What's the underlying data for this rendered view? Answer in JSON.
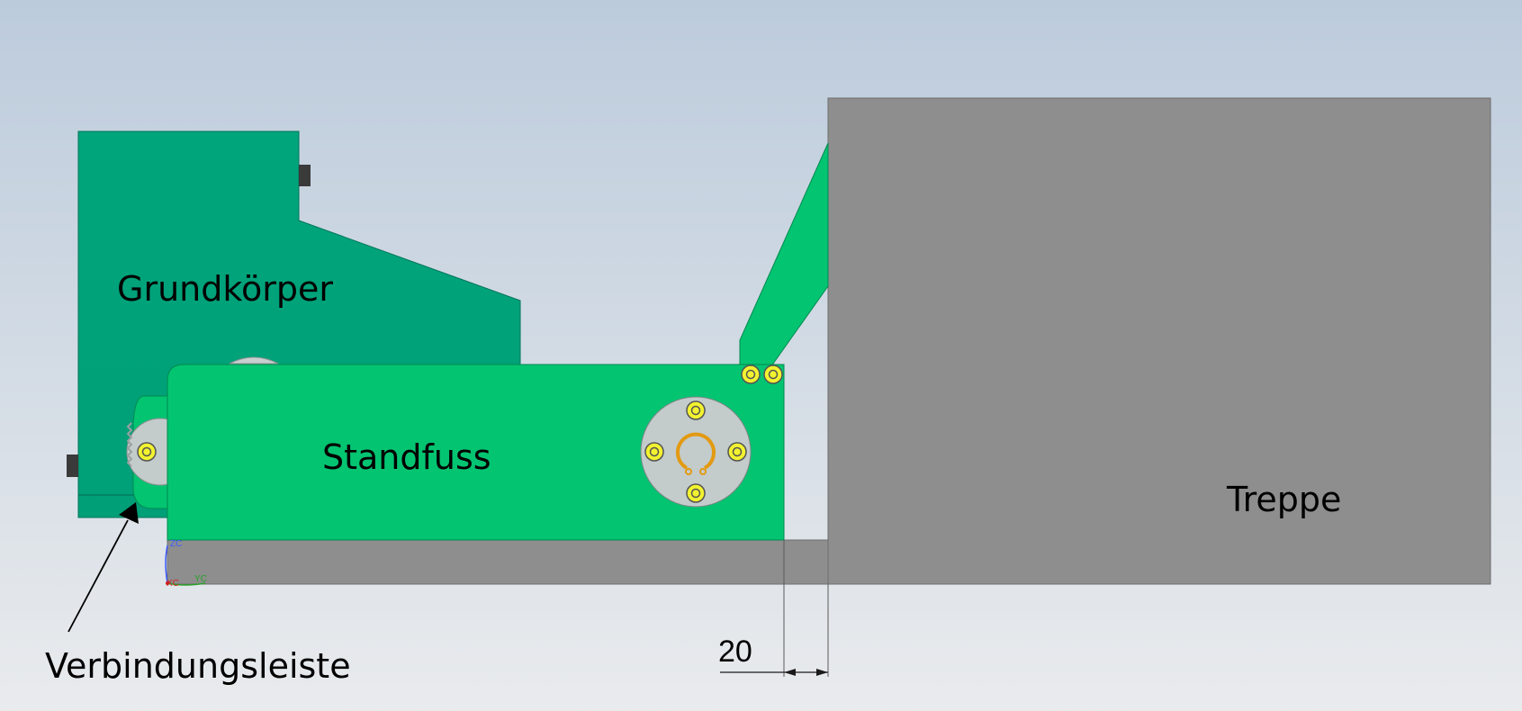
{
  "labels": {
    "grundkoerper": "Grundkörper",
    "standfuss": "Standfuss",
    "treppe": "Treppe",
    "verbindungsleiste": "Verbindungsleiste"
  },
  "dimension": {
    "value": "20"
  },
  "axes": {
    "z": "ZC",
    "x": "XC",
    "y": "YC"
  },
  "colors": {
    "background_top": "#bccbdc",
    "background_bottom": "#e9ebed",
    "grundkoerper": "#00a57b",
    "standfuss": "#03c471",
    "treppe": "#8c8c8c",
    "hub": "#c3cbcb",
    "bolt": "#f2f230",
    "circlip": "#e39a12"
  },
  "icons": {
    "bolt": "hex-socket-bolt-icon",
    "circlip": "circlip-icon",
    "arrow": "leader-arrow-icon"
  }
}
